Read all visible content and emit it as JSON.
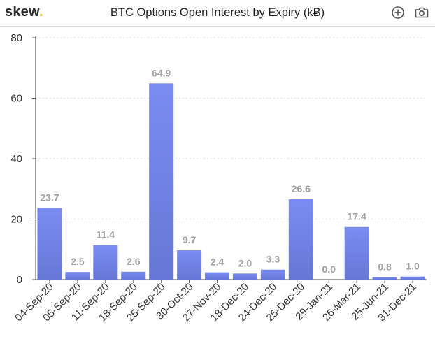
{
  "header": {
    "logo_text": "skew",
    "logo_dot": ".",
    "title": "BTC Options Open Interest by Expiry (kɃ)",
    "icons": [
      "zoom-in-icon",
      "camera-icon"
    ]
  },
  "colors": {
    "bar_top": "#7b8cf2",
    "bar_bottom": "#6677d6",
    "logo_dot": "#f2b705",
    "grid": "#d9d9d9",
    "data_label": "#a0a0a0"
  },
  "chart_data": {
    "type": "bar",
    "title": "BTC Options Open Interest by Expiry (kɃ)",
    "xlabel": "",
    "ylabel": "",
    "categories": [
      "04-Sep-20",
      "05-Sep-20",
      "11-Sep-20",
      "18-Sep-20",
      "25-Sep-20",
      "30-Oct-20",
      "27-Nov-20",
      "18-Dec-20",
      "24-Dec-20",
      "25-Dec-20",
      "29-Jan-21",
      "26-Mar-21",
      "25-Jun-21",
      "31-Dec-21"
    ],
    "values": [
      23.7,
      2.5,
      11.4,
      2.6,
      64.9,
      9.7,
      2.4,
      2.0,
      3.3,
      26.6,
      0.0,
      17.4,
      0.8,
      1.0
    ],
    "value_labels": [
      "23.7",
      "2.5",
      "11.4",
      "2.6",
      "64.9",
      "9.7",
      "2.4",
      "2.0",
      "3.3",
      "26.6",
      "0.0",
      "17.4",
      "0.8",
      "1.0"
    ],
    "ylim": [
      0,
      80
    ],
    "yticks": [
      0,
      20,
      40,
      60,
      80
    ],
    "grid": true,
    "legend": "none"
  }
}
